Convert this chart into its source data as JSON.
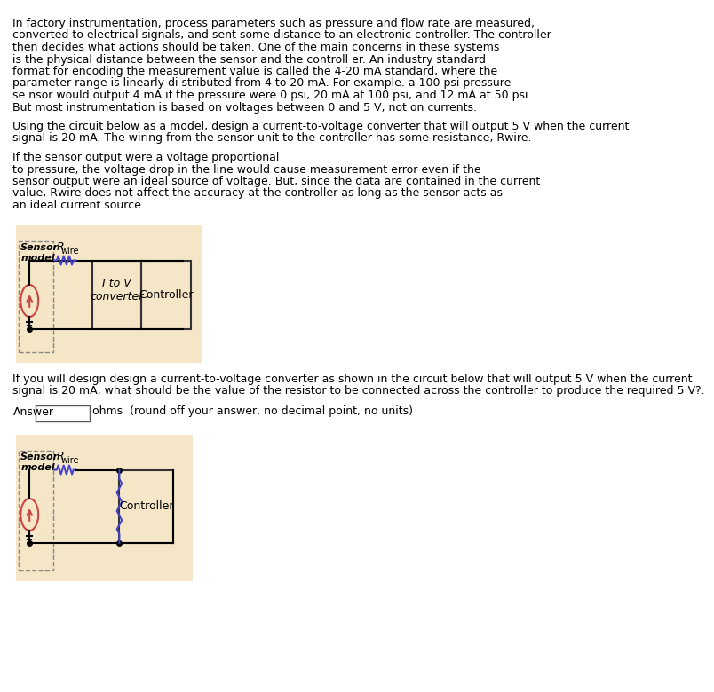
{
  "bg_color": "#FFFFFF",
  "circuit_bg": "#F5E6C8",
  "text_color": "#000000",
  "paragraph1": "In factory instrumentation, process parameters such as pressure and flow rate are measured,\nconverted to electrical signals, and sent some distance to an electronic controller. The controller\nthen decides what actions should be taken. One of the main concerns in these systems\nis the physical distance between the sensor and the controll er. An industry standard\nformat for encoding the measurement value is called the 4-20 mA standard, where the\nparameter range is linearly di stributed from 4 to 20 mA. For example. a 100 psi pressure\nse nsor would output 4 mA if the pressure were 0 psi, 20 mA at 100 psi, and 12 mA at 50 psi.\nBut most instrumentation is based on voltages between 0 and 5 V, not on currents.",
  "paragraph2": "Using the circuit below as a model, design a current-to-voltage converter that will output 5 V when the current\nsignal is 20 mA. The wiring from the sensor unit to the controller has some resistance, Rwire.",
  "paragraph3": "If the sensor output were a voltage proportional\nto pressure, the voltage drop in the line would cause measurement error even if the\nsensor output were an ideal source of voltage. But, since the data are contained in the current\nvalue, Rwire does not affect the accuracy at the controller as long as the sensor acts as\nan ideal current source.",
  "paragraph4": "If you will design design a current-to-voltage converter as shown in the circuit below that will output 5 V when the current\nsignal is 20 mA, what should be the value of the resistor to be connected across the controller to produce the required 5 V?.",
  "answer_label": "Answer",
  "answer_suffix": "ohms  (round off your answer, no decimal point, no units)",
  "sensor_label1": "Sensor",
  "sensor_label2": "model",
  "rwire_label": "R",
  "rwire_sub": "wire",
  "itov_label": "I to V\nconverter",
  "controller_label": "Controller",
  "font_size_body": 9.0,
  "font_size_small": 8.5
}
